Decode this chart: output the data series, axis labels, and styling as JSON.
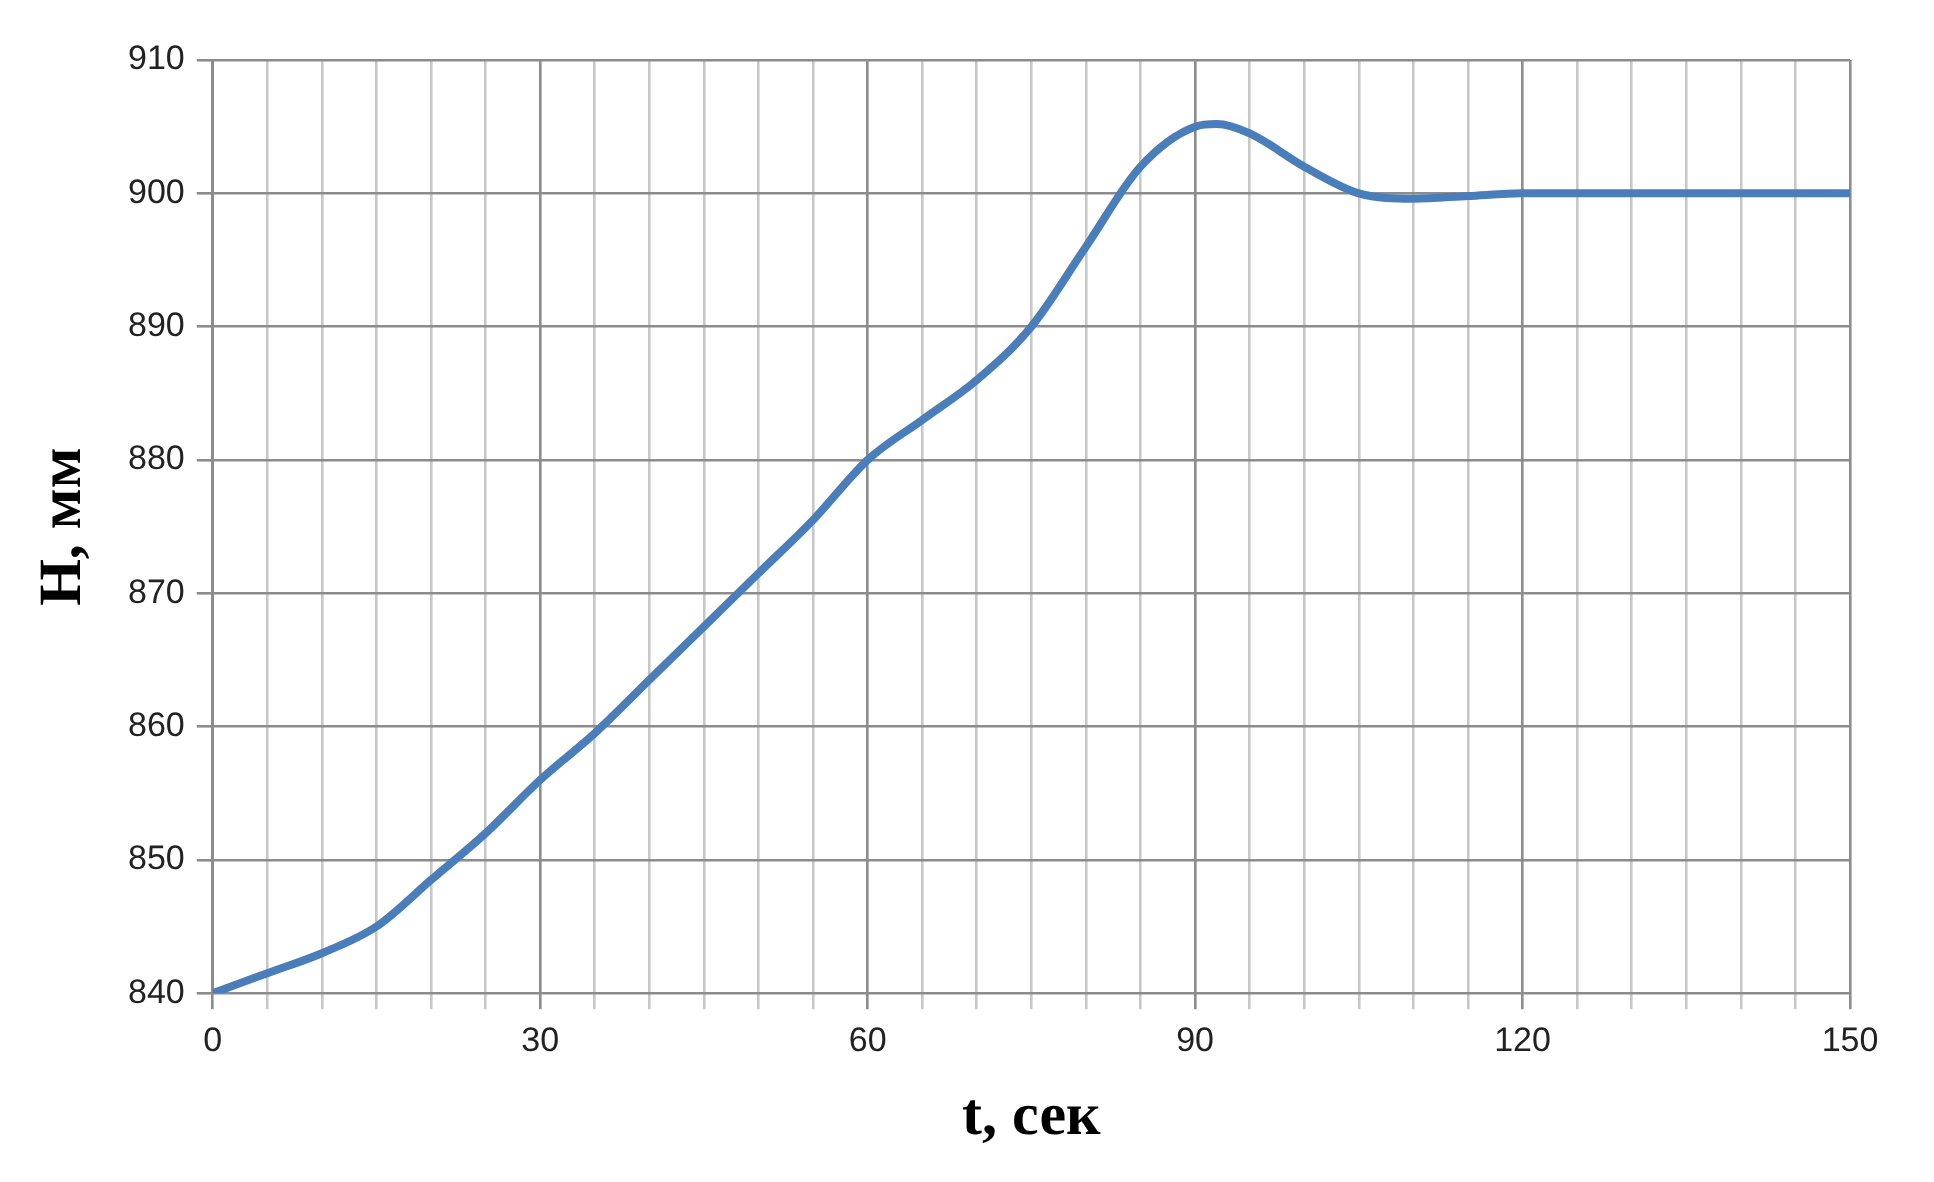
{
  "chart_data": {
    "type": "line",
    "xlabel": "t, сек",
    "ylabel": "H, мм",
    "x": [
      0,
      5,
      10,
      15,
      20,
      25,
      30,
      35,
      40,
      45,
      50,
      55,
      60,
      65,
      70,
      75,
      80,
      85,
      90,
      92,
      95,
      100,
      105,
      110,
      115,
      120,
      135,
      150
    ],
    "series": [
      {
        "color": "#4a7ebb",
        "values": [
          840,
          841.5,
          843,
          845,
          848.5,
          852,
          856,
          859.5,
          863.5,
          867.5,
          871.5,
          875.5,
          880,
          883,
          886,
          890,
          896,
          902,
          905,
          905.2,
          904.5,
          902,
          900,
          899.6,
          899.8,
          900,
          900,
          900
        ]
      }
    ],
    "xlim": [
      0,
      150
    ],
    "ylim": [
      840,
      910
    ],
    "xticks": [
      0,
      {
        "value": 5,
        "label": null
      },
      {
        "value": 10,
        "label": null
      },
      {
        "value": 15,
        "label": null
      },
      {
        "value": 20,
        "label": null
      },
      {
        "value": 25,
        "label": null
      },
      30,
      {
        "value": 35,
        "label": null
      },
      {
        "value": 40,
        "label": null
      },
      {
        "value": 45,
        "label": null
      },
      {
        "value": 50,
        "label": null
      },
      {
        "value": 55,
        "label": null
      },
      60,
      {
        "value": 65,
        "label": null
      },
      {
        "value": 70,
        "label": null
      },
      {
        "value": 75,
        "label": null
      },
      {
        "value": 80,
        "label": null
      },
      {
        "value": 85,
        "label": null
      },
      90,
      {
        "value": 95,
        "label": null
      },
      {
        "value": 100,
        "label": null
      },
      {
        "value": 105,
        "label": null
      },
      {
        "value": 110,
        "label": null
      },
      {
        "value": 115,
        "label": null
      },
      120,
      {
        "value": 125,
        "label": null
      },
      {
        "value": 130,
        "label": null
      },
      {
        "value": 135,
        "label": null
      },
      {
        "value": 140,
        "label": null
      },
      {
        "value": 145,
        "label": null
      },
      150
    ],
    "yticks": [
      840,
      850,
      860,
      870,
      880,
      890,
      900,
      910
    ],
    "grid": true,
    "legend": false,
    "marker": "none",
    "line_style": "solid"
  }
}
